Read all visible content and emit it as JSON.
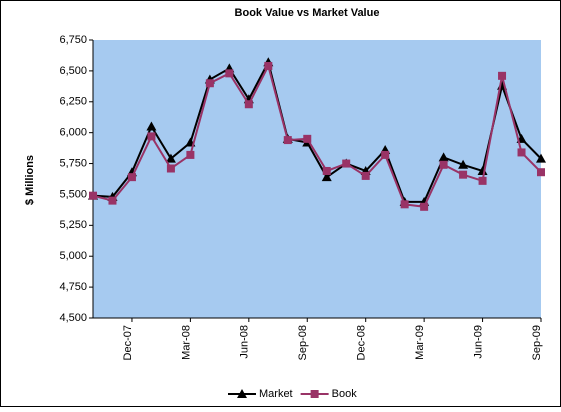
{
  "chart_data": {
    "type": "line",
    "title": "Book Value vs Market Value",
    "y_label": "$ Millions",
    "categories": [
      null,
      null,
      "Dec-07",
      null,
      null,
      "Mar-08",
      null,
      null,
      "Jun-08",
      null,
      null,
      "Sep-08",
      null,
      null,
      "Dec-08",
      null,
      null,
      "Mar-09",
      null,
      null,
      "Jun-09",
      null,
      null,
      "Sep-09"
    ],
    "series": [
      {
        "name": "Market",
        "color": "#000000",
        "marker": "triangle",
        "values": [
          5490,
          5480,
          5680,
          6050,
          5790,
          5920,
          6430,
          6520,
          6270,
          6570,
          5950,
          5920,
          5640,
          5750,
          5690,
          5860,
          5440,
          5440,
          5800,
          5740,
          5690,
          6380,
          5950,
          5790
        ]
      },
      {
        "name": "Book",
        "color": "#993366",
        "marker": "square",
        "values": [
          5490,
          5450,
          5640,
          5970,
          5710,
          5820,
          6400,
          6480,
          6230,
          6540,
          5940,
          5950,
          5690,
          5750,
          5650,
          5820,
          5420,
          5400,
          5740,
          5660,
          5610,
          6460,
          5840,
          5680
        ]
      }
    ],
    "ylim": [
      4500,
      6750
    ],
    "yticks": [
      {
        "value": 4500,
        "label": "4,500"
      },
      {
        "value": 4750,
        "label": "4,750"
      },
      {
        "value": 5000,
        "label": "5,000"
      },
      {
        "value": 5250,
        "label": "5,250"
      },
      {
        "value": 5500,
        "label": "5,500"
      },
      {
        "value": 5750,
        "label": "5,750"
      },
      {
        "value": 6000,
        "label": "6,000"
      },
      {
        "value": 6250,
        "label": "6,250"
      },
      {
        "value": 6500,
        "label": "6,500"
      },
      {
        "value": 6750,
        "label": "6,750"
      }
    ],
    "plot_background": "#a6caf0",
    "grid": false,
    "legend": "bottom"
  }
}
